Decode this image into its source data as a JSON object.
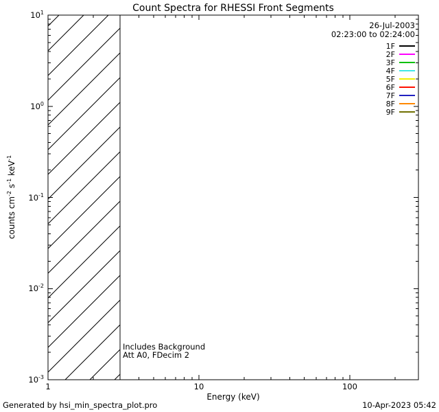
{
  "title": "Count Spectra for RHESSI Front Segments",
  "legend": {
    "date": "26-Jul-2003",
    "time_range": "02:23:00 to 02:24:00",
    "entries": [
      {
        "label": "1F",
        "color": "#000000"
      },
      {
        "label": "2F",
        "color": "#ff00ff"
      },
      {
        "label": "3F",
        "color": "#00c000"
      },
      {
        "label": "4F",
        "color": "#40e8e8"
      },
      {
        "label": "5F",
        "color": "#f0f000"
      },
      {
        "label": "6F",
        "color": "#ff1000"
      },
      {
        "label": "7F",
        "color": "#2020c0"
      },
      {
        "label": "8F",
        "color": "#ff8800"
      },
      {
        "label": "9F",
        "color": "#707000"
      }
    ]
  },
  "annotations": [
    "Includes Background",
    "Att A0, FDecim 2"
  ],
  "footer": {
    "left": "Generated by hsi_min_spectra_plot.pro",
    "right": "10-Apr-2023 05:42"
  },
  "chart_data": {
    "type": "line",
    "title": "Count Spectra for RHESSI Front Segments",
    "xlabel": "Energy (keV)",
    "ylabel": "counts cm^-2 s^-1 keV^-1",
    "x_scale": "log",
    "y_scale": "log",
    "xlim": [
      1,
      285
    ],
    "ylim": [
      0.001,
      10
    ],
    "x_ticks": [
      {
        "value": 1,
        "label": "1"
      },
      {
        "value": 10,
        "label": "10"
      },
      {
        "value": 100,
        "label": "100"
      }
    ],
    "y_ticks": [
      {
        "value": 10,
        "label": "10^1"
      },
      {
        "value": 1,
        "label": "10^0"
      },
      {
        "value": 0.1,
        "label": "10^-1"
      },
      {
        "value": 0.01,
        "label": "10^-2"
      },
      {
        "value": 0.001,
        "label": "10^-3"
      }
    ],
    "series": [],
    "hatched_band": {
      "x_from": 1,
      "x_to": 3,
      "style": "diagonal-hatch",
      "note": "low-energy excluded band, no spectra curves drawn in plot area"
    },
    "grid": false,
    "legend_position": "top-right-inside"
  }
}
